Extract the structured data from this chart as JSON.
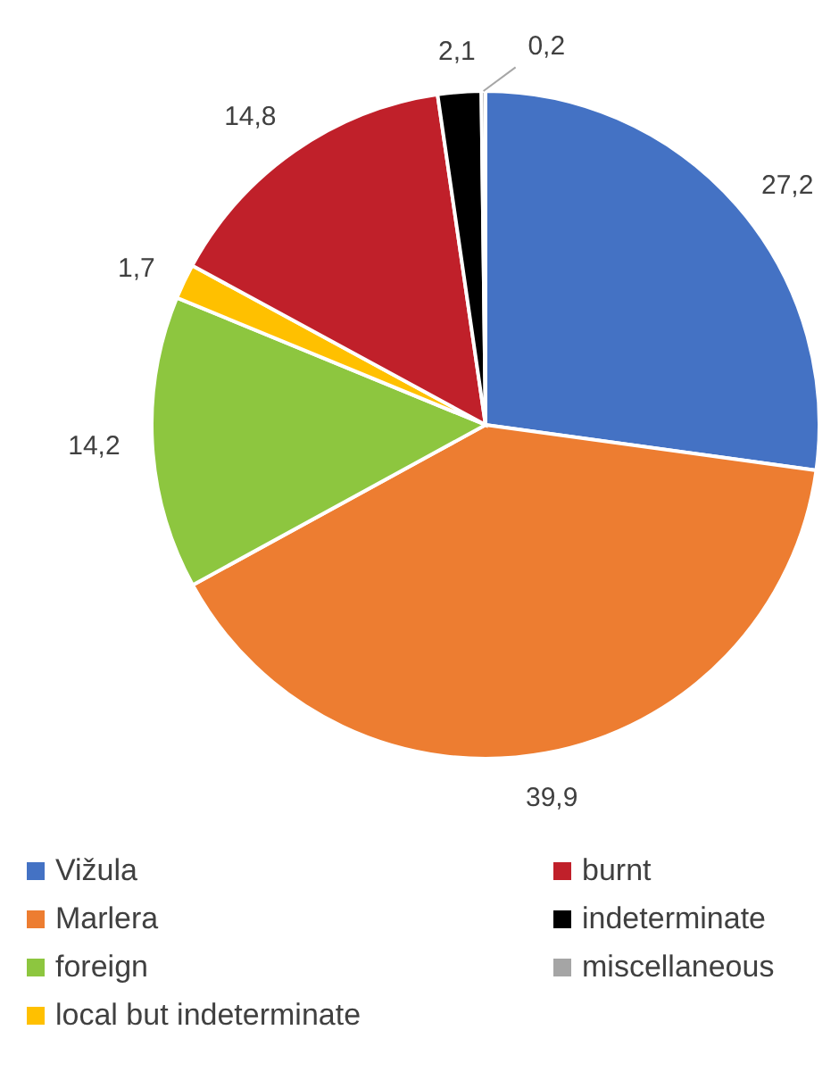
{
  "chart_data": {
    "type": "pie",
    "categories": [
      "Vižula",
      "Marlera",
      "foreign",
      "local but indeterminate",
      "burnt",
      "indeterminate",
      "miscellaneous"
    ],
    "values": [
      27.2,
      39.9,
      14.2,
      1.7,
      14.8,
      2.1,
      0.2
    ],
    "colors": [
      "#4472c4",
      "#ed7d31",
      "#8dc63f",
      "#ffc000",
      "#c0202a",
      "#000000",
      "#a5a5a5"
    ],
    "value_labels": [
      "27,2",
      "39,9",
      "14,2",
      "1,7",
      "14,8",
      "2,1",
      "0,2"
    ],
    "legend": "bottom"
  }
}
